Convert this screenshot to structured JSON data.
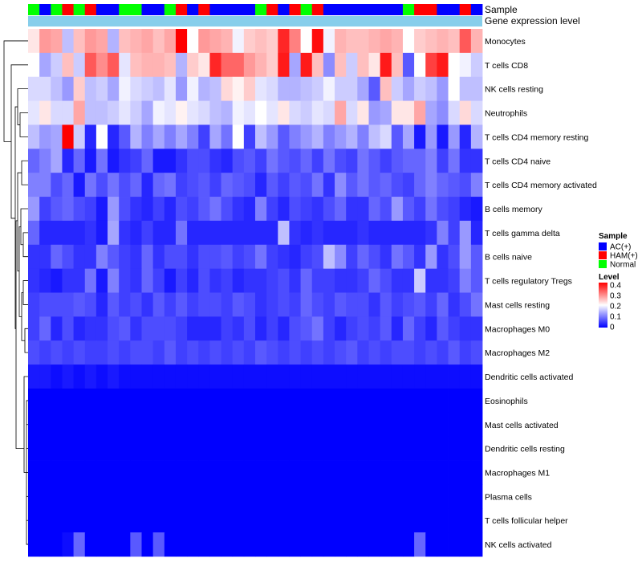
{
  "chart_data": {
    "type": "heatmap",
    "annotation_labels": {
      "sample": "Sample",
      "gene_expression": "Gene expression level"
    },
    "sample_legend": {
      "title": "Sample",
      "entries": [
        {
          "label": "AC(+)",
          "color": "#0000ff"
        },
        {
          "label": "HAM(+)",
          "color": "#ff0000"
        },
        {
          "label": "Normal",
          "color": "#00ff00"
        }
      ]
    },
    "level_legend": {
      "title": "Level",
      "ticks": [
        "0.4",
        "0.3",
        "0.2",
        "0.1",
        "0"
      ],
      "range": [
        0,
        0.4
      ],
      "colors": [
        "#0000ff",
        "#ffffff",
        "#ff0000"
      ]
    },
    "gene_expression_color": "#87ceeb",
    "sample_groups": [
      "N",
      "A",
      "N",
      "H",
      "N",
      "H",
      "A",
      "A",
      "N",
      "N",
      "A",
      "A",
      "N",
      "H",
      "A",
      "H",
      "A",
      "A",
      "A",
      "A",
      "N",
      "H",
      "A",
      "H",
      "N",
      "H",
      "A",
      "A",
      "A",
      "A",
      "A",
      "A",
      "A",
      "N",
      "H",
      "H",
      "A",
      "A",
      "H",
      "A"
    ],
    "rows": [
      "Monocytes",
      "T cells CD8",
      "NK cells resting",
      "Neutrophils",
      "T cells CD4 memory resting",
      "T cells CD4 naive",
      "T cells CD4 memory activated",
      "B cells memory",
      "T cells gamma delta",
      "B cells naive",
      "T cells regulatory  Tregs",
      "Mast cells resting",
      "Macrophages M0",
      "Macrophages M2",
      "Dendritic cells activated",
      "Eosinophils",
      "Mast cells activated",
      "Dendritic cells resting",
      "Macrophages M1",
      "Plasma cells",
      "T cells follicular helper",
      "NK cells activated"
    ],
    "values": [
      [
        0.22,
        0.28,
        0.27,
        0.15,
        0.25,
        0.28,
        0.27,
        0.14,
        0.25,
        0.26,
        0.27,
        0.25,
        0.27,
        0.4,
        0.2,
        0.28,
        0.27,
        0.26,
        0.19,
        0.24,
        0.25,
        0.24,
        0.37,
        0.3,
        0.2,
        0.39,
        0.19,
        0.26,
        0.25,
        0.25,
        0.26,
        0.27,
        0.26,
        0.2,
        0.24,
        0.25,
        0.26,
        0.25,
        0.33,
        0.26
      ],
      [
        0.2,
        0.13,
        0.16,
        0.25,
        0.16,
        0.33,
        0.29,
        0.33,
        0.18,
        0.25,
        0.26,
        0.26,
        0.25,
        0.14,
        0.24,
        0.22,
        0.37,
        0.32,
        0.32,
        0.28,
        0.26,
        0.24,
        0.38,
        0.13,
        0.38,
        0.25,
        0.11,
        0.25,
        0.16,
        0.25,
        0.22,
        0.38,
        0.25,
        0.07,
        0.2,
        0.35,
        0.38,
        0.2,
        0.19,
        0.16
      ],
      [
        0.17,
        0.17,
        0.15,
        0.12,
        0.24,
        0.15,
        0.16,
        0.13,
        0.19,
        0.17,
        0.16,
        0.15,
        0.18,
        0.12,
        0.19,
        0.14,
        0.15,
        0.23,
        0.21,
        0.24,
        0.18,
        0.17,
        0.14,
        0.14,
        0.15,
        0.16,
        0.19,
        0.16,
        0.16,
        0.13,
        0.07,
        0.25,
        0.16,
        0.13,
        0.16,
        0.15,
        0.12,
        0.2,
        0.15,
        0.15
      ],
      [
        0.18,
        0.22,
        0.17,
        0.17,
        0.27,
        0.15,
        0.15,
        0.16,
        0.18,
        0.16,
        0.13,
        0.19,
        0.18,
        0.21,
        0.18,
        0.17,
        0.15,
        0.14,
        0.19,
        0.18,
        0.2,
        0.18,
        0.22,
        0.17,
        0.16,
        0.18,
        0.17,
        0.27,
        0.17,
        0.22,
        0.12,
        0.13,
        0.22,
        0.22,
        0.27,
        0.13,
        0.11,
        0.17,
        0.23,
        0.17
      ],
      [
        0.15,
        0.12,
        0.13,
        0.4,
        0.16,
        0.03,
        0.2,
        0.03,
        0.07,
        0.14,
        0.1,
        0.13,
        0.1,
        0.13,
        0.1,
        0.05,
        0.13,
        0.09,
        0.2,
        0.05,
        0.15,
        0.12,
        0.07,
        0.1,
        0.12,
        0.14,
        0.1,
        0.12,
        0.14,
        0.1,
        0.15,
        0.17,
        0.07,
        0.13,
        0.02,
        0.12,
        0.02,
        0.12,
        0.03,
        0.14
      ],
      [
        0.08,
        0.1,
        0.13,
        0.03,
        0.08,
        0.02,
        0.09,
        0.02,
        0.04,
        0.05,
        0.08,
        0.02,
        0.02,
        0.04,
        0.06,
        0.06,
        0.04,
        0.03,
        0.06,
        0.07,
        0.05,
        0.09,
        0.07,
        0.06,
        0.08,
        0.05,
        0.09,
        0.06,
        0.05,
        0.09,
        0.07,
        0.05,
        0.07,
        0.08,
        0.08,
        0.1,
        0.05,
        0.09,
        0.04,
        0.04
      ],
      [
        0.1,
        0.1,
        0.06,
        0.08,
        0.02,
        0.09,
        0.06,
        0.09,
        0.06,
        0.08,
        0.03,
        0.08,
        0.09,
        0.05,
        0.06,
        0.07,
        0.05,
        0.08,
        0.07,
        0.06,
        0.03,
        0.07,
        0.05,
        0.07,
        0.06,
        0.09,
        0.04,
        0.11,
        0.07,
        0.09,
        0.07,
        0.08,
        0.06,
        0.05,
        0.08,
        0.1,
        0.08,
        0.07,
        0.06,
        0.1
      ],
      [
        0.12,
        0.05,
        0.07,
        0.08,
        0.06,
        0.05,
        0.02,
        0.12,
        0.06,
        0.04,
        0.03,
        0.05,
        0.03,
        0.06,
        0.05,
        0.07,
        0.09,
        0.06,
        0.04,
        0.03,
        0.1,
        0.05,
        0.03,
        0.06,
        0.05,
        0.04,
        0.06,
        0.08,
        0.04,
        0.04,
        0.08,
        0.06,
        0.12,
        0.07,
        0.05,
        0.09,
        0.06,
        0.05,
        0.03,
        0.02
      ],
      [
        0.08,
        0.03,
        0.03,
        0.03,
        0.03,
        0.04,
        0.02,
        0.13,
        0.04,
        0.03,
        0.05,
        0.03,
        0.03,
        0.09,
        0.03,
        0.03,
        0.03,
        0.03,
        0.03,
        0.03,
        0.03,
        0.03,
        0.15,
        0.04,
        0.03,
        0.04,
        0.03,
        0.03,
        0.03,
        0.04,
        0.03,
        0.03,
        0.03,
        0.03,
        0.03,
        0.04,
        0.1,
        0.05,
        0.12,
        0.03
      ],
      [
        0.04,
        0.04,
        0.08,
        0.06,
        0.04,
        0.04,
        0.1,
        0.07,
        0.05,
        0.04,
        0.08,
        0.04,
        0.06,
        0.06,
        0.04,
        0.06,
        0.06,
        0.07,
        0.05,
        0.06,
        0.09,
        0.05,
        0.04,
        0.03,
        0.05,
        0.06,
        0.15,
        0.11,
        0.05,
        0.08,
        0.06,
        0.04,
        0.09,
        0.07,
        0.04,
        0.12,
        0.04,
        0.06,
        0.12,
        0.07
      ],
      [
        0.04,
        0.03,
        0.02,
        0.04,
        0.04,
        0.09,
        0.02,
        0.1,
        0.05,
        0.04,
        0.08,
        0.05,
        0.02,
        0.05,
        0.03,
        0.06,
        0.04,
        0.05,
        0.03,
        0.04,
        0.04,
        0.05,
        0.06,
        0.04,
        0.08,
        0.05,
        0.05,
        0.04,
        0.04,
        0.05,
        0.08,
        0.06,
        0.04,
        0.04,
        0.16,
        0.04,
        0.04,
        0.05,
        0.1,
        0.07
      ],
      [
        0.05,
        0.06,
        0.06,
        0.06,
        0.07,
        0.06,
        0.03,
        0.07,
        0.05,
        0.06,
        0.04,
        0.07,
        0.05,
        0.07,
        0.05,
        0.06,
        0.06,
        0.05,
        0.07,
        0.06,
        0.04,
        0.05,
        0.06,
        0.05,
        0.08,
        0.06,
        0.05,
        0.07,
        0.06,
        0.06,
        0.04,
        0.07,
        0.05,
        0.06,
        0.07,
        0.05,
        0.08,
        0.04,
        0.06,
        0.09
      ],
      [
        0.05,
        0.08,
        0.03,
        0.06,
        0.03,
        0.04,
        0.04,
        0.06,
        0.07,
        0.04,
        0.06,
        0.06,
        0.06,
        0.05,
        0.03,
        0.03,
        0.03,
        0.05,
        0.04,
        0.06,
        0.03,
        0.05,
        0.03,
        0.06,
        0.07,
        0.09,
        0.05,
        0.03,
        0.05,
        0.06,
        0.05,
        0.07,
        0.03,
        0.08,
        0.05,
        0.03,
        0.07,
        0.05,
        0.04,
        0.04
      ],
      [
        0.06,
        0.05,
        0.06,
        0.05,
        0.06,
        0.05,
        0.05,
        0.06,
        0.05,
        0.06,
        0.06,
        0.05,
        0.07,
        0.05,
        0.06,
        0.05,
        0.06,
        0.05,
        0.06,
        0.05,
        0.07,
        0.06,
        0.05,
        0.06,
        0.05,
        0.06,
        0.05,
        0.06,
        0.07,
        0.05,
        0.06,
        0.05,
        0.06,
        0.06,
        0.05,
        0.06,
        0.05,
        0.07,
        0.05,
        0.06
      ],
      [
        0.02,
        0.02,
        0.01,
        0.02,
        0.01,
        0.02,
        0.01,
        0.02,
        0.01,
        0.01,
        0.01,
        0.01,
        0.01,
        0.01,
        0.01,
        0.01,
        0.01,
        0.01,
        0.01,
        0.01,
        0.01,
        0.01,
        0.01,
        0.01,
        0.01,
        0.01,
        0.01,
        0.01,
        0.01,
        0.01,
        0.01,
        0.01,
        0.01,
        0.01,
        0.01,
        0.01,
        0.01,
        0.01,
        0.01,
        0.01
      ],
      [
        0,
        0,
        0,
        0,
        0,
        0,
        0,
        0,
        0,
        0,
        0,
        0,
        0,
        0,
        0,
        0,
        0,
        0,
        0,
        0,
        0,
        0,
        0,
        0,
        0,
        0,
        0,
        0,
        0,
        0,
        0,
        0,
        0,
        0,
        0,
        0,
        0,
        0,
        0,
        0
      ],
      [
        0,
        0,
        0,
        0,
        0,
        0,
        0,
        0,
        0,
        0,
        0,
        0,
        0,
        0,
        0,
        0,
        0,
        0,
        0,
        0,
        0,
        0,
        0,
        0,
        0,
        0,
        0,
        0,
        0,
        0,
        0,
        0,
        0,
        0,
        0,
        0,
        0,
        0,
        0,
        0
      ],
      [
        0,
        0,
        0,
        0,
        0,
        0,
        0,
        0,
        0,
        0,
        0,
        0,
        0,
        0,
        0,
        0,
        0,
        0,
        0,
        0,
        0,
        0,
        0,
        0,
        0,
        0,
        0,
        0,
        0,
        0,
        0,
        0,
        0,
        0,
        0,
        0,
        0,
        0,
        0,
        0
      ],
      [
        0,
        0,
        0,
        0,
        0,
        0,
        0,
        0,
        0,
        0,
        0,
        0,
        0,
        0,
        0,
        0,
        0,
        0,
        0,
        0,
        0,
        0,
        0,
        0,
        0,
        0,
        0,
        0,
        0,
        0,
        0,
        0,
        0,
        0,
        0,
        0,
        0,
        0,
        0,
        0
      ],
      [
        0,
        0,
        0,
        0,
        0,
        0,
        0,
        0,
        0,
        0,
        0,
        0,
        0,
        0,
        0,
        0,
        0,
        0,
        0,
        0,
        0,
        0,
        0,
        0,
        0,
        0,
        0,
        0,
        0,
        0,
        0,
        0,
        0,
        0,
        0,
        0,
        0,
        0,
        0,
        0
      ],
      [
        0,
        0,
        0,
        0,
        0,
        0,
        0,
        0,
        0,
        0,
        0,
        0,
        0,
        0,
        0,
        0,
        0,
        0,
        0,
        0,
        0,
        0,
        0,
        0,
        0,
        0,
        0,
        0,
        0,
        0,
        0,
        0,
        0,
        0,
        0,
        0,
        0,
        0,
        0,
        0
      ],
      [
        0,
        0,
        0,
        0.01,
        0.08,
        0,
        0,
        0,
        0,
        0.07,
        0,
        0.07,
        0,
        0,
        0,
        0,
        0,
        0,
        0,
        0,
        0,
        0,
        0,
        0,
        0,
        0,
        0,
        0,
        0,
        0,
        0,
        0,
        0,
        0,
        0.08,
        0,
        0,
        0,
        0,
        0
      ]
    ]
  }
}
